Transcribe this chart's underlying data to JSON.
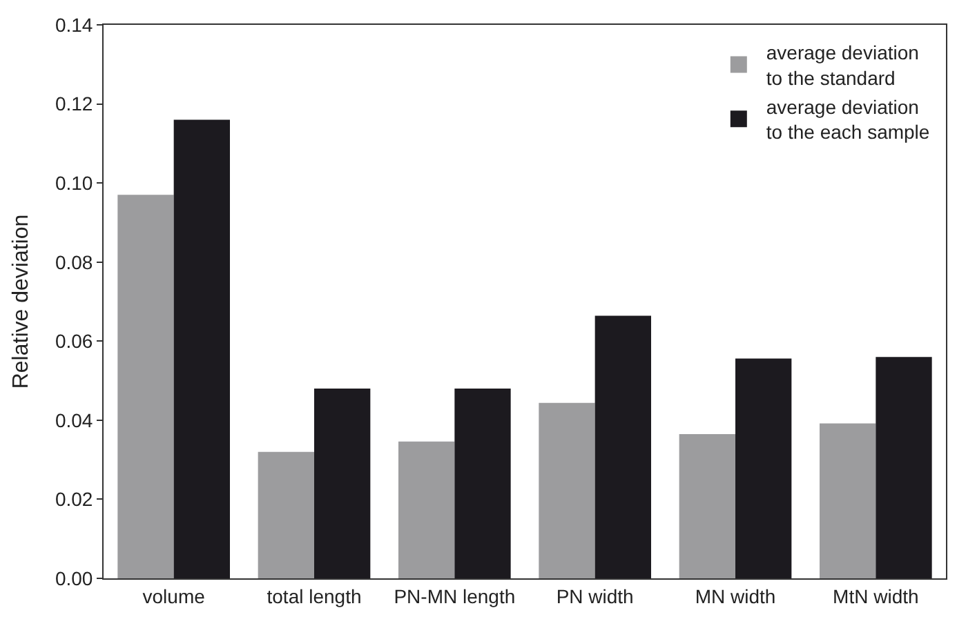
{
  "chart_data": {
    "type": "bar",
    "ylabel": "Relative deviation",
    "categories": [
      "volume",
      "total length",
      "PN-MN length",
      "PN width",
      "MN width",
      "MtN width"
    ],
    "series": [
      {
        "name": "average deviation\nto the standard",
        "color": "#9c9c9e",
        "values": [
          0.097,
          0.032,
          0.0346,
          0.0444,
          0.0365,
          0.0392
        ]
      },
      {
        "name": "average deviation\nto the each sample",
        "color": "#1c1a1f",
        "values": [
          0.116,
          0.048,
          0.048,
          0.0664,
          0.0556,
          0.056
        ]
      }
    ],
    "ylim": [
      0,
      0.14
    ],
    "yticks": [
      {
        "value": 0,
        "label": "0.00"
      },
      {
        "value": 0.02,
        "label": "0.02"
      },
      {
        "value": 0.04,
        "label": "0.04"
      },
      {
        "value": 0.06,
        "label": "0.06"
      },
      {
        "value": 0.08,
        "label": "0.08"
      },
      {
        "value": 0.1,
        "label": "0.10"
      },
      {
        "value": 0.12,
        "label": "0.12"
      },
      {
        "value": 0.14,
        "label": "0.14"
      }
    ],
    "legend": "top right"
  }
}
